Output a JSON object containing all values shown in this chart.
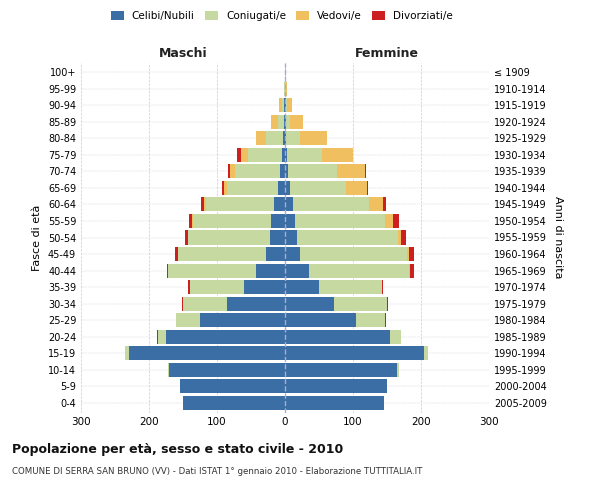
{
  "age_groups": [
    "0-4",
    "5-9",
    "10-14",
    "15-19",
    "20-24",
    "25-29",
    "30-34",
    "35-39",
    "40-44",
    "45-49",
    "50-54",
    "55-59",
    "60-64",
    "65-69",
    "70-74",
    "75-79",
    "80-84",
    "85-89",
    "90-94",
    "95-99",
    "100+"
  ],
  "birth_years": [
    "2005-2009",
    "2000-2004",
    "1995-1999",
    "1990-1994",
    "1985-1989",
    "1980-1984",
    "1975-1979",
    "1970-1974",
    "1965-1969",
    "1960-1964",
    "1955-1959",
    "1950-1954",
    "1945-1949",
    "1940-1944",
    "1935-1939",
    "1930-1934",
    "1925-1929",
    "1920-1924",
    "1915-1919",
    "1910-1914",
    "≤ 1909"
  ],
  "male_celibi": [
    150,
    155,
    170,
    230,
    175,
    125,
    85,
    60,
    42,
    28,
    22,
    20,
    16,
    10,
    8,
    5,
    3,
    2,
    1,
    0,
    0
  ],
  "male_coniugati": [
    0,
    0,
    2,
    5,
    12,
    35,
    65,
    80,
    130,
    130,
    120,
    115,
    100,
    75,
    65,
    50,
    25,
    8,
    3,
    1,
    0
  ],
  "male_vedovi": [
    0,
    0,
    0,
    0,
    0,
    0,
    0,
    0,
    0,
    0,
    1,
    2,
    3,
    5,
    8,
    10,
    15,
    10,
    5,
    0,
    0
  ],
  "male_divorziati": [
    0,
    0,
    0,
    0,
    1,
    1,
    2,
    2,
    2,
    4,
    4,
    4,
    5,
    3,
    3,
    5,
    0,
    0,
    0,
    0,
    0
  ],
  "female_celibi": [
    145,
    150,
    165,
    205,
    155,
    105,
    72,
    50,
    35,
    22,
    18,
    15,
    12,
    8,
    5,
    3,
    2,
    1,
    1,
    0,
    0
  ],
  "female_coniugati": [
    0,
    0,
    2,
    5,
    15,
    42,
    78,
    92,
    148,
    158,
    148,
    132,
    112,
    82,
    72,
    52,
    20,
    6,
    2,
    1,
    0
  ],
  "female_vedovi": [
    0,
    0,
    0,
    0,
    0,
    0,
    0,
    0,
    1,
    2,
    5,
    12,
    20,
    30,
    40,
    45,
    40,
    20,
    8,
    2,
    1
  ],
  "female_divorziati": [
    0,
    0,
    0,
    0,
    1,
    1,
    2,
    2,
    5,
    8,
    7,
    8,
    5,
    2,
    2,
    0,
    0,
    0,
    0,
    0,
    0
  ],
  "colors": {
    "celibi": "#3b6ea5",
    "coniugati": "#c5d9a0",
    "vedovi": "#f0c060",
    "divorziati": "#cc2020"
  },
  "xlim": 300,
  "title": "Popolazione per età, sesso e stato civile - 2010",
  "subtitle": "COMUNE DI SERRA SAN BRUNO (VV) - Dati ISTAT 1° gennaio 2010 - Elaborazione TUTTITALIA.IT",
  "ylabel_left": "Fasce di età",
  "ylabel_right": "Anni di nascita",
  "xlabel_left": "Maschi",
  "xlabel_right": "Femmine",
  "bg_color": "#ffffff",
  "grid_color": "#cccccc"
}
